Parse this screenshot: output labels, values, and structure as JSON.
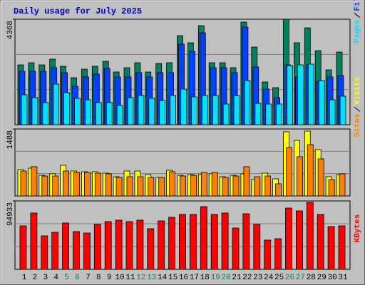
{
  "chart_data": [
    {
      "type": "bar",
      "title": "Daily usage for July 2025",
      "ylim": [
        0,
        4368
      ],
      "yticks": [
        4368
      ],
      "series": [
        {
          "name": "Hits",
          "color": "#008060",
          "values": [
            2478,
            2567,
            2478,
            2714,
            2419,
            1947,
            2301,
            2419,
            2626,
            2183,
            2360,
            2567,
            2183,
            2537,
            2567,
            3688,
            3393,
            4101,
            2567,
            2567,
            2360,
            4250,
            3216,
            1770,
            1534,
            4368,
            3393,
            4012,
            3068,
            2272,
            3009
          ]
        },
        {
          "name": "Files",
          "color": "#0040ff",
          "values": [
            2213,
            2213,
            2213,
            2360,
            2154,
            1593,
            1977,
            2095,
            2331,
            1977,
            1977,
            2154,
            1977,
            2154,
            2154,
            3334,
            3039,
            3806,
            2360,
            2360,
            2154,
            4042,
            2390,
            1475,
            1121,
            2478,
            1977,
            2478,
            1800,
            1977,
            2036
          ]
        },
        {
          "name": "Pages",
          "color": "#00e0ff",
          "values": [
            1239,
            1121,
            915,
            1682,
            1328,
            1092,
            1033,
            915,
            915,
            797,
            1121,
            1210,
            1092,
            1003,
            1210,
            1475,
            1151,
            1210,
            1210,
            856,
            1210,
            1829,
            885,
            856,
            856,
            2449,
            2478,
            2508,
            1829,
            1033,
            1180
          ]
        }
      ]
    },
    {
      "type": "bar",
      "ylim": [
        0,
        1488
      ],
      "yticks": [
        1488
      ],
      "series": [
        {
          "name": "Visits",
          "color": "#ffff00",
          "values": [
            586,
            617,
            459,
            491,
            681,
            554,
            538,
            538,
            507,
            427,
            554,
            554,
            475,
            412,
            570,
            459,
            475,
            475,
            491,
            427,
            459,
            491,
            364,
            507,
            380,
            1425,
            1235,
            1440,
            1029,
            427,
            475
          ]
        },
        {
          "name": "Sites",
          "color": "#ff8000",
          "values": [
            554,
            649,
            443,
            443,
            554,
            522,
            522,
            507,
            491,
            412,
            427,
            427,
            412,
            412,
            538,
            443,
            459,
            522,
            522,
            412,
            443,
            649,
            427,
            443,
            269,
            1076,
            871,
            1140,
            823,
            364,
            491
          ]
        }
      ]
    },
    {
      "type": "bar",
      "ylim": [
        0,
        94933
      ],
      "yticks": [
        94933
      ],
      "categories": [
        "1",
        "2",
        "3",
        "4",
        "5",
        "6",
        "7",
        "8",
        "9",
        "10",
        "11",
        "12",
        "13",
        "14",
        "15",
        "16",
        "17",
        "18",
        "19",
        "20",
        "21",
        "22",
        "23",
        "24",
        "25",
        "26",
        "27",
        "28",
        "29",
        "30",
        "31"
      ],
      "category_colors": [
        "#000000",
        "#000000",
        "#000000",
        "#000000",
        "#008060",
        "#008060",
        "#000000",
        "#000000",
        "#000000",
        "#000000",
        "#000000",
        "#008060",
        "#008060",
        "#000000",
        "#000000",
        "#000000",
        "#000000",
        "#000000",
        "#008060",
        "#008060",
        "#000000",
        "#000000",
        "#000000",
        "#000000",
        "#000000",
        "#008060",
        "#008060",
        "#000000",
        "#000000",
        "#000000",
        "#000000"
      ],
      "series": [
        {
          "name": "KBytes",
          "color": "#ff0000",
          "values": [
            60329,
            78131,
            46483,
            51428,
            64285,
            52417,
            50439,
            62307,
            66263,
            68241,
            66263,
            68241,
            56373,
            67252,
            72197,
            76153,
            76153,
            87032,
            76153,
            78131,
            57362,
            77142,
            62307,
            40549,
            42527,
            85054,
            81098,
            92966,
            76153,
            59340,
            60329
          ]
        }
      ]
    }
  ]
}
